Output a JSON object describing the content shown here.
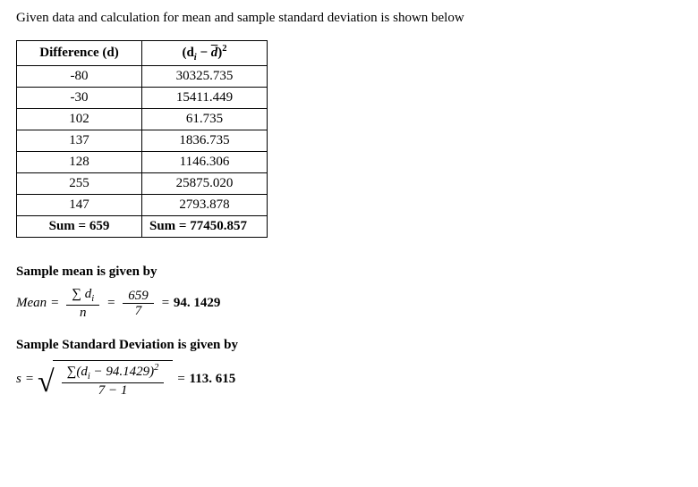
{
  "intro_text": "Given data and calculation for mean and sample standard deviation is shown below",
  "table": {
    "columns": {
      "col1_label": "Difference (d)",
      "col2_prefix": "(d",
      "col2_sub": "i",
      "col2_mid": " − ",
      "col2_dbar": "d",
      "col2_close": ")",
      "col2_sup": "2"
    },
    "rows": [
      {
        "d": "-80",
        "sq": "30325.735"
      },
      {
        "d": "-30",
        "sq": "15411.449"
      },
      {
        "d": "102",
        "sq": "61.735"
      },
      {
        "d": "137",
        "sq": "1836.735"
      },
      {
        "d": "128",
        "sq": "1146.306"
      },
      {
        "d": "255",
        "sq": "25875.020"
      },
      {
        "d": "147",
        "sq": "2793.878"
      }
    ],
    "sum_row": {
      "d": "Sum = 659",
      "sq": "Sum = 77450.857"
    }
  },
  "mean_section": {
    "title": "Sample mean is given by",
    "label": "Mean",
    "eq": " = ",
    "sigma": "∑ d",
    "sigma_sub": "i",
    "n": "n",
    "eq2": " = ",
    "num2": "659",
    "den2": "7",
    "eq3": " = ",
    "result": "94. 1429"
  },
  "sd_section": {
    "title": "Sample Standard Deviation is given by",
    "label": "s",
    "eq": " = ",
    "sigma": "∑(d",
    "sigma_sub": "i",
    "mid": " − 94.1429)",
    "sup": "2",
    "den": "7 − 1",
    "eq2": " = ",
    "result": "113. 615"
  }
}
